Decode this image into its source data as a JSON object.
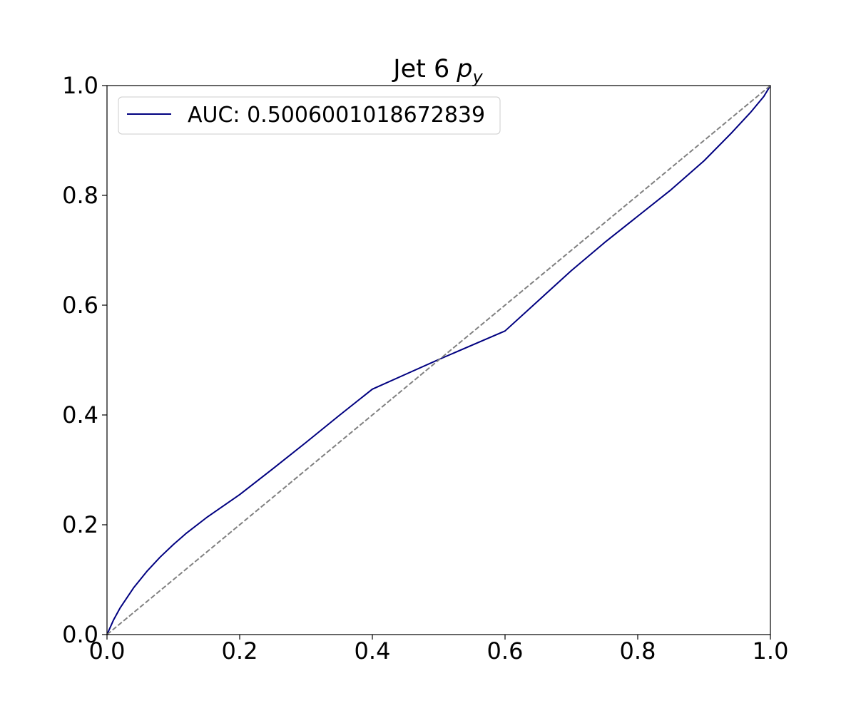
{
  "chart_data": {
    "type": "line",
    "title": "Jet 6",
    "title_math": "p",
    "title_math_sub": "y",
    "xlim": [
      0.0,
      1.0
    ],
    "ylim": [
      0.0,
      1.0
    ],
    "xticks": [
      "0.0",
      "0.2",
      "0.4",
      "0.6",
      "0.8",
      "1.0"
    ],
    "yticks": [
      "0.0",
      "0.2",
      "0.4",
      "0.6",
      "0.8",
      "1.0"
    ],
    "grid": false,
    "legend_position": "top-left",
    "series": [
      {
        "name": "AUC: 0.5006001018672839",
        "color": "#000080",
        "style": "solid",
        "x": [
          0.0,
          0.01,
          0.02,
          0.04,
          0.06,
          0.08,
          0.1,
          0.12,
          0.15,
          0.2,
          0.25,
          0.3,
          0.35,
          0.4,
          0.45,
          0.5,
          0.55,
          0.6,
          0.65,
          0.7,
          0.75,
          0.8,
          0.85,
          0.9,
          0.94,
          0.97,
          0.99,
          1.0
        ],
        "y": [
          0.0,
          0.027,
          0.049,
          0.085,
          0.115,
          0.141,
          0.164,
          0.185,
          0.213,
          0.255,
          0.302,
          0.35,
          0.399,
          0.447,
          0.474,
          0.501,
          0.527,
          0.553,
          0.608,
          0.663,
          0.714,
          0.762,
          0.81,
          0.863,
          0.912,
          0.951,
          0.98,
          1.0
        ]
      },
      {
        "color": "#808080",
        "style": "dashed",
        "x": [
          0.0,
          1.0
        ],
        "y": [
          0.0,
          1.0
        ]
      }
    ]
  }
}
